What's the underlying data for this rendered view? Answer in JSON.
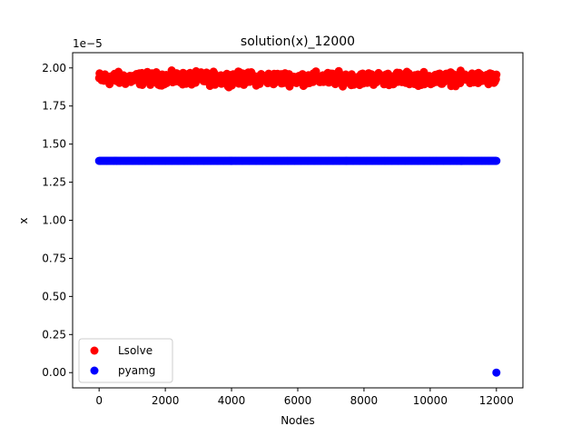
{
  "chart_data": {
    "type": "scatter",
    "title": "solution(x)_12000",
    "xlabel": "Nodes",
    "ylabel": "x",
    "y_offset_text": "1e−5",
    "xlim": [
      -800,
      12800
    ],
    "ylim": [
      -0.1,
      2.1
    ],
    "x_ticks": [
      0,
      2000,
      4000,
      6000,
      8000,
      10000,
      12000
    ],
    "x_tick_labels": [
      "0",
      "2000",
      "4000",
      "6000",
      "8000",
      "10000",
      "12000"
    ],
    "y_ticks": [
      0.0,
      0.25,
      0.5,
      0.75,
      1.0,
      1.25,
      1.5,
      1.75,
      2.0
    ],
    "y_tick_labels": [
      "0.00",
      "0.25",
      "0.50",
      "0.75",
      "1.00",
      "1.25",
      "1.50",
      "1.75",
      "2.00"
    ],
    "grid": false,
    "legend_position": "lower-left",
    "series": [
      {
        "name": "Lsolve",
        "color": "#ff0000",
        "x_range": [
          0,
          12000
        ],
        "y_center": 1.935,
        "y_band": [
          1.87,
          1.99
        ],
        "n_points": 12000
      },
      {
        "name": "pyamg",
        "color": "#0000ff",
        "x_range": [
          0,
          12000
        ],
        "y_value": 1.39,
        "n_points": 12000,
        "outliers": [
          {
            "x": 12000,
            "y": 0.0
          }
        ]
      }
    ]
  }
}
